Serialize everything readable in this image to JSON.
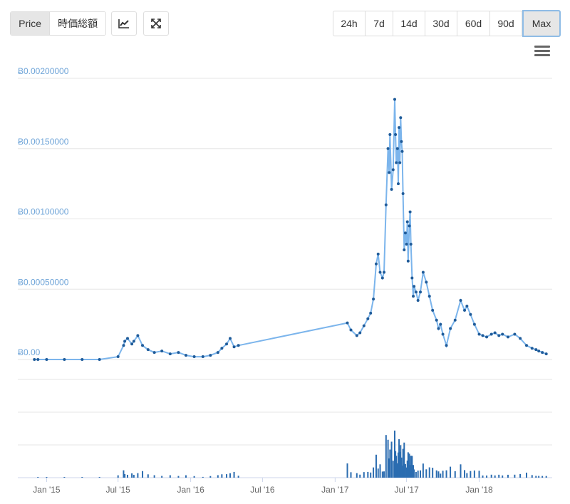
{
  "toolbar": {
    "tabs": [
      {
        "label": "Price",
        "active": true
      },
      {
        "label": "時価総額",
        "active": false
      }
    ],
    "chart_type_icon": "line-chart-icon",
    "fullscreen_icon": "expand-icon",
    "ranges": [
      {
        "label": "24h",
        "active": false
      },
      {
        "label": "7d",
        "active": false
      },
      {
        "label": "14d",
        "active": false
      },
      {
        "label": "30d",
        "active": false
      },
      {
        "label": "60d",
        "active": false
      },
      {
        "label": "90d",
        "active": false
      },
      {
        "label": "Max",
        "active": true
      }
    ],
    "menu_icon": "hamburger-icon"
  },
  "colors": {
    "line": "#7cb5ec",
    "marker": "#1f5b99",
    "volume": "#2b6cb0",
    "grid": "#e6e6e6",
    "ylabel": "#6ea4d8",
    "active_border": "#8fbce6"
  },
  "chart_data": {
    "type": "line",
    "ylim": [
      0,
      0.002
    ],
    "yticks": [
      "Ƀ0.00",
      "Ƀ0.00050000",
      "Ƀ0.00100000",
      "Ƀ0.00150000",
      "Ƀ0.00200000"
    ],
    "xticks": [
      "Jan '15",
      "Jul '15",
      "Jan '16",
      "Jul '16",
      "Jan '17",
      "Jul '17",
      "Jan '18"
    ],
    "grid": true,
    "legend": "none",
    "price_series": {
      "x": [
        "2014-12-01",
        "2014-12-10",
        "2015-01-01",
        "2015-02-15",
        "2015-04-01",
        "2015-05-15",
        "2015-07-01",
        "2015-07-15",
        "2015-07-18",
        "2015-07-25",
        "2015-08-05",
        "2015-08-10",
        "2015-08-20",
        "2015-09-01",
        "2015-09-15",
        "2015-10-01",
        "2015-10-20",
        "2015-11-10",
        "2015-12-01",
        "2015-12-20",
        "2016-01-10",
        "2016-02-01",
        "2016-02-20",
        "2016-03-10",
        "2016-03-20",
        "2016-04-01",
        "2016-04-10",
        "2016-04-20",
        "2016-05-01",
        "2017-02-01",
        "2017-02-10",
        "2017-02-25",
        "2017-03-05",
        "2017-03-15",
        "2017-03-25",
        "2017-04-01",
        "2017-04-08",
        "2017-04-15",
        "2017-04-20",
        "2017-04-25",
        "2017-05-01",
        "2017-05-05",
        "2017-05-10",
        "2017-05-15",
        "2017-05-18",
        "2017-05-20",
        "2017-05-24",
        "2017-05-28",
        "2017-06-01",
        "2017-06-03",
        "2017-06-05",
        "2017-06-08",
        "2017-06-10",
        "2017-06-12",
        "2017-06-14",
        "2017-06-16",
        "2017-06-18",
        "2017-06-20",
        "2017-06-22",
        "2017-06-25",
        "2017-06-28",
        "2017-07-01",
        "2017-07-03",
        "2017-07-05",
        "2017-07-08",
        "2017-07-10",
        "2017-07-12",
        "2017-07-15",
        "2017-07-18",
        "2017-07-20",
        "2017-07-25",
        "2017-07-30",
        "2017-08-05",
        "2017-08-12",
        "2017-08-20",
        "2017-08-28",
        "2017-09-05",
        "2017-09-15",
        "2017-09-20",
        "2017-09-25",
        "2017-10-01",
        "2017-10-10",
        "2017-10-20",
        "2017-11-01",
        "2017-11-15",
        "2017-11-25",
        "2017-12-01",
        "2017-12-10",
        "2017-12-20",
        "2018-01-01",
        "2018-01-10",
        "2018-01-20",
        "2018-02-01",
        "2018-02-10",
        "2018-02-20",
        "2018-03-01",
        "2018-03-15",
        "2018-04-01",
        "2018-04-15",
        "2018-05-01",
        "2018-05-15",
        "2018-05-25",
        "2018-06-01",
        "2018-06-10",
        "2018-06-20"
      ],
      "y": [
        0.0,
        0.0,
        0.0,
        0.0,
        0.0,
        0.0,
        2e-05,
        0.0001,
        0.00013,
        0.00015,
        0.00011,
        0.00013,
        0.00017,
        0.0001,
        7e-05,
        5e-05,
        6e-05,
        4e-05,
        5e-05,
        3e-05,
        2e-05,
        2e-05,
        3e-05,
        5e-05,
        8e-05,
        0.00011,
        0.00015,
        9e-05,
        0.0001,
        0.00026,
        0.00021,
        0.00017,
        0.00019,
        0.00024,
        0.00029,
        0.00033,
        0.00043,
        0.00068,
        0.00075,
        0.00062,
        0.00058,
        0.00062,
        0.0011,
        0.0015,
        0.00133,
        0.0016,
        0.00121,
        0.00135,
        0.00185,
        0.0016,
        0.0014,
        0.0015,
        0.00125,
        0.00165,
        0.0014,
        0.00172,
        0.00155,
        0.00148,
        0.00118,
        0.00078,
        0.0009,
        0.00082,
        0.00098,
        0.0007,
        0.00095,
        0.00105,
        0.00082,
        0.00058,
        0.00045,
        0.00052,
        0.00048,
        0.00042,
        0.00048,
        0.00062,
        0.00055,
        0.00045,
        0.00035,
        0.00028,
        0.00022,
        0.00025,
        0.00018,
        0.0001,
        0.00022,
        0.00028,
        0.00042,
        0.00035,
        0.00038,
        0.00032,
        0.00025,
        0.00018,
        0.00017,
        0.00016,
        0.00018,
        0.00019,
        0.00017,
        0.00018,
        0.00016,
        0.00018,
        0.00015,
        0.0001,
        8e-05,
        7e-05,
        6e-05,
        5e-05,
        4e-05
      ]
    }
  }
}
